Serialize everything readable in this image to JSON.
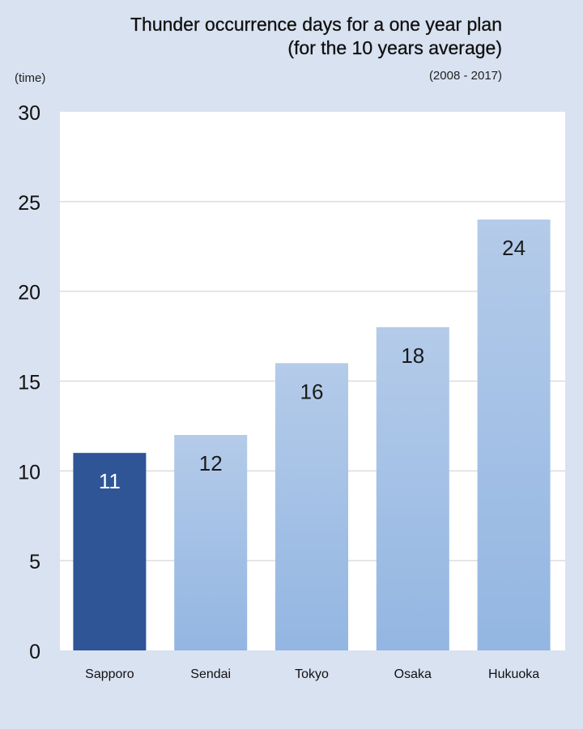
{
  "chart_data": {
    "type": "bar",
    "title": "Thunder occurrence days for a one year plan",
    "subtitle": "(for the 10 years average)",
    "period": "(2008 - 2017)",
    "ylabel": "(time)",
    "categories": [
      "Sapporo",
      "Sendai",
      "Tokyo",
      "Osaka",
      "Hukuoka"
    ],
    "values": [
      11,
      12,
      16,
      18,
      24
    ],
    "ylim": [
      0,
      30
    ],
    "yticks": [
      0,
      5,
      10,
      15,
      20,
      25,
      30
    ],
    "grid": true,
    "colors": {
      "highlight": "#2f5597",
      "bar_top": "#b4cbe9",
      "bar_bottom": "#93b6e2",
      "plot_bg": "#ffffff",
      "page_bg": "#d9e2f1",
      "grid": "#dcdcdc"
    },
    "highlight_index": 0
  }
}
